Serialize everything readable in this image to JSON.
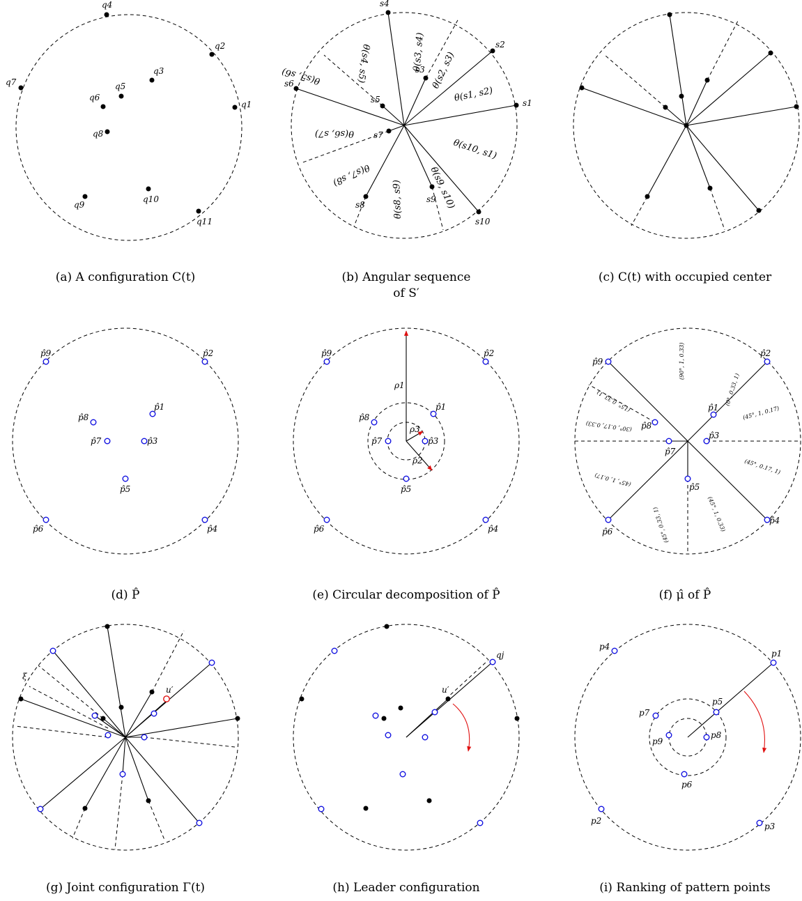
{
  "panels": {
    "a": {
      "caption": "(a) A configuration C(t)",
      "labels": {
        "q1": "q1",
        "q2": "q2",
        "q3": "q3",
        "q4": "q4",
        "q5": "q5",
        "q6": "q6",
        "q7": "q7",
        "q8": "q8",
        "q9": "q9",
        "q10": "q10",
        "q11": "q11"
      }
    },
    "b": {
      "caption": "(b) Angular sequence\nof S′",
      "labels": {
        "s1": "s1",
        "s2": "s2",
        "s3": "s3",
        "s4": "s4",
        "s5": "s5",
        "s6": "s6",
        "s7": "s7",
        "s8": "s8",
        "s9": "s9",
        "s10": "s10"
      },
      "angles": {
        "s1s2": "θ(s1, s2)",
        "s2s3": "θ(s2, s3)",
        "s3s4": "θ(s3, s4)",
        "s4s5": "θ(s4, s5)",
        "s5s6": "θ(s5, s6)",
        "s6s7": "θ(s6, s7)",
        "s7s8": "θ(s7, s8)",
        "s8s9": "θ(s8, s9)",
        "s9s10": "θ(s9, s10)",
        "s10s1": "θ(s10, s1)"
      }
    },
    "c": {
      "caption": "(c) C(t) with occupied center"
    },
    "d": {
      "caption": "(d) P̂",
      "labels": {
        "p1": "p̂1",
        "p2": "p̂2",
        "p3": "p̂3",
        "p4": "p̂4",
        "p5": "p̂5",
        "p6": "p̂6",
        "p7": "p̂7",
        "p8": "p̂8",
        "p9": "p̂9"
      }
    },
    "e": {
      "caption": "(e) Circular decomposition of P̂",
      "labels": {
        "p1": "p̂1",
        "p2": "p̂2",
        "p3": "p̂3",
        "p4": "p̂4",
        "p5": "p̂5",
        "p6": "p̂6",
        "p7": "p̂7",
        "p8": "p̂8",
        "p9": "p̂9"
      },
      "radii": {
        "rho1": "ρ1",
        "rho2": "ρ2",
        "rho3": "ρ3"
      }
    },
    "f": {
      "caption": "(f) μ̂ of P̂",
      "labels": {
        "p1": "p̂1",
        "p2": "p̂2",
        "p3": "p̂3",
        "p4": "p̂4",
        "p5": "p̂5",
        "p6": "p̂6",
        "p7": "p̂7",
        "p8": "p̂8",
        "p9": "p̂9"
      },
      "sectors": {
        "t1": "(90°, 1, 0.33)",
        "t2": "(0°, 0.33, 1)",
        "t3": "(45°, 1, 0.17)",
        "t4": "(45°, 0.17, 1)",
        "t5": "(45°, 1, 0.33)",
        "t6": "(45°, 0.33, 1)",
        "t7": "(45°, 1, 0.17)",
        "t8": "(30°, 0.17, 0.33)",
        "t9": "(15°, 0.33, 1)"
      }
    },
    "g": {
      "caption": "(g) Joint configuration Γ(t)",
      "labels": {
        "u": "u′",
        "xi": "ξ"
      }
    },
    "h": {
      "caption": "(h) Leader configuration",
      "labels": {
        "u": "u′",
        "qj": "qj"
      }
    },
    "i": {
      "caption": "(i) Ranking of pattern points",
      "labels": {
        "p1": "p1",
        "p2": "p2",
        "p3": "p3",
        "p4": "p4",
        "p5": "p5",
        "p6": "p6",
        "p7": "p7",
        "p8": "p8",
        "p9": "p9"
      }
    }
  }
}
